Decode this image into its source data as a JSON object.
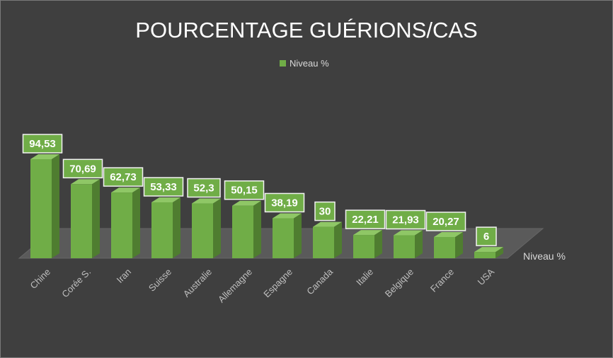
{
  "chart_data": {
    "type": "bar",
    "title": "POURCENTAGE GUÉRIONS/CAS",
    "categories": [
      "Chine",
      "Corée S.",
      "Iran",
      "Suisse",
      "Australie",
      "Allemagne",
      "Espagne",
      "Canada",
      "Italie",
      "Belgique",
      "France",
      "USA"
    ],
    "series": [
      {
        "name": "Niveau %",
        "values": [
          94.53,
          70.69,
          62.73,
          53.33,
          52.3,
          50.15,
          38.19,
          30,
          22.21,
          21.93,
          20.27,
          6
        ],
        "labels": [
          "94,53",
          "70,69",
          "62,73",
          "53,33",
          "52,3",
          "50,15",
          "38,19",
          "30",
          "22,21",
          "21,93",
          "20,27",
          "6"
        ]
      }
    ],
    "depth_axis_label": "Niveau %",
    "legend_position": "top",
    "grid": false,
    "colors": {
      "bar_front": "#70ad47",
      "bar_side": "#4f7d30",
      "bar_top": "#8fc766",
      "background": "#3f3f3f",
      "floor": "#5a5a5a",
      "label_box": "#70ad47"
    }
  }
}
